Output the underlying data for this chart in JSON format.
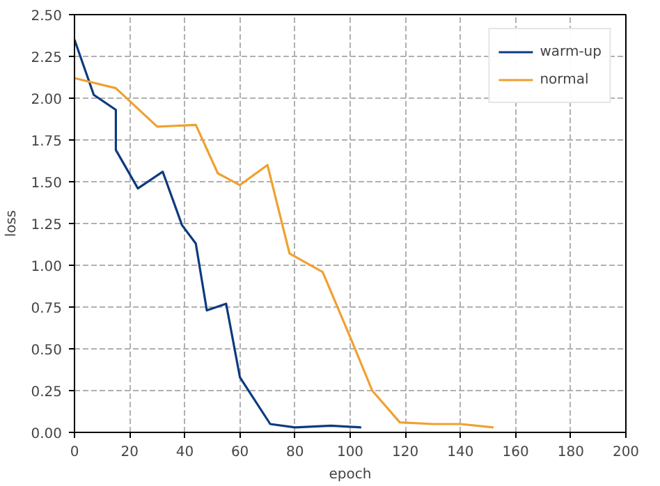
{
  "chart_data": {
    "type": "line",
    "xlabel": "epoch",
    "ylabel": "loss",
    "xlim": [
      0,
      200
    ],
    "xticks": [
      0,
      20,
      40,
      60,
      80,
      100,
      120,
      140,
      160,
      180,
      200
    ],
    "ylim": [
      0,
      2.5
    ],
    "yticks": [
      {
        "value": 0,
        "label": "0.00"
      },
      {
        "value": 0.25,
        "label": "0.25"
      },
      {
        "value": 0.5,
        "label": "0.50"
      },
      {
        "value": 0.75,
        "label": "0.75"
      },
      {
        "value": 1,
        "label": "1.00"
      },
      {
        "value": 1.25,
        "label": "1.25"
      },
      {
        "value": 1.5,
        "label": "1.50"
      },
      {
        "value": 1.75,
        "label": "1.75"
      },
      {
        "value": 2,
        "label": "2.00"
      },
      {
        "value": 2.25,
        "label": "2.25"
      },
      {
        "value": 2.5,
        "label": "2.50"
      }
    ],
    "grid": true,
    "legend": "top right",
    "line_style": "solid",
    "series": [
      {
        "name": "warm-up",
        "color": "#0d3a7e",
        "x": [
          0,
          7,
          15,
          15,
          23,
          32,
          39,
          44,
          48,
          55,
          60,
          71,
          80,
          93,
          104
        ],
        "values": [
          2.35,
          2.02,
          1.93,
          1.69,
          1.46,
          1.56,
          1.24,
          1.13,
          0.73,
          0.77,
          0.33,
          0.05,
          0.03,
          0.04,
          0.03
        ]
      },
      {
        "name": "normal",
        "color": "#f0a030",
        "x": [
          0,
          15,
          30,
          44,
          52,
          60,
          70,
          78,
          90,
          100,
          108,
          118,
          130,
          140,
          152
        ],
        "values": [
          2.12,
          2.06,
          1.83,
          1.84,
          1.55,
          1.48,
          1.6,
          1.07,
          0.96,
          0.57,
          0.25,
          0.06,
          0.05,
          0.05,
          0.03
        ]
      }
    ]
  }
}
